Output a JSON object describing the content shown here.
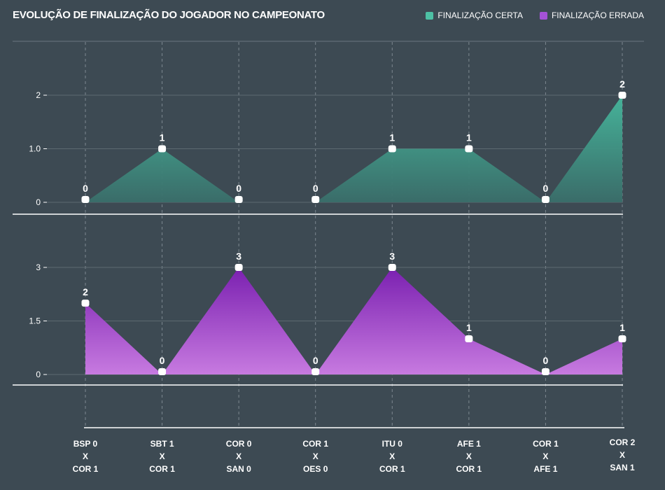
{
  "chart_data": {
    "type": "area",
    "title": "EVOLUÇÃO DE FINALIZAÇÃO DO JOGADOR NO CAMPEONATO",
    "legend_position": "top-right",
    "grid": true,
    "categories": [
      [
        "BSP 0",
        "X",
        "COR 1"
      ],
      [
        "SBT 1",
        "X",
        "COR 1"
      ],
      [
        "COR 0",
        "X",
        "SAN 0"
      ],
      [
        "COR 1",
        "X",
        "OES 0"
      ],
      [
        "ITU 0",
        "X",
        "COR 1"
      ],
      [
        "AFE 1",
        "X",
        "COR 1"
      ],
      [
        "COR 1",
        "X",
        "AFE 1"
      ],
      [
        "COR 2",
        "X",
        "SAN 1"
      ]
    ],
    "series": [
      {
        "name": "FINALIZAÇÃO CERTA",
        "color": "#4dc0a4",
        "values": [
          0,
          1,
          0,
          0,
          1,
          1,
          0,
          2
        ],
        "data_labels": [
          "0",
          "1",
          "0",
          "0",
          "1",
          "1",
          "0",
          "2"
        ],
        "yticks": [
          0,
          1.0,
          2
        ],
        "ytick_labels": [
          "0",
          "1.0",
          "2"
        ],
        "ylim": [
          0,
          2
        ]
      },
      {
        "name": "FINALIZAÇÃO ERRADA",
        "color": "#a452d6",
        "values": [
          2,
          0,
          3,
          0,
          3,
          1,
          0,
          1
        ],
        "data_labels": [
          "2",
          "0",
          "3",
          "0",
          "3",
          "1",
          "0",
          "1"
        ],
        "yticks": [
          0,
          1.5,
          3
        ],
        "ytick_labels": [
          "0",
          "1.5",
          "3"
        ],
        "ylim": [
          0,
          3
        ]
      }
    ]
  }
}
